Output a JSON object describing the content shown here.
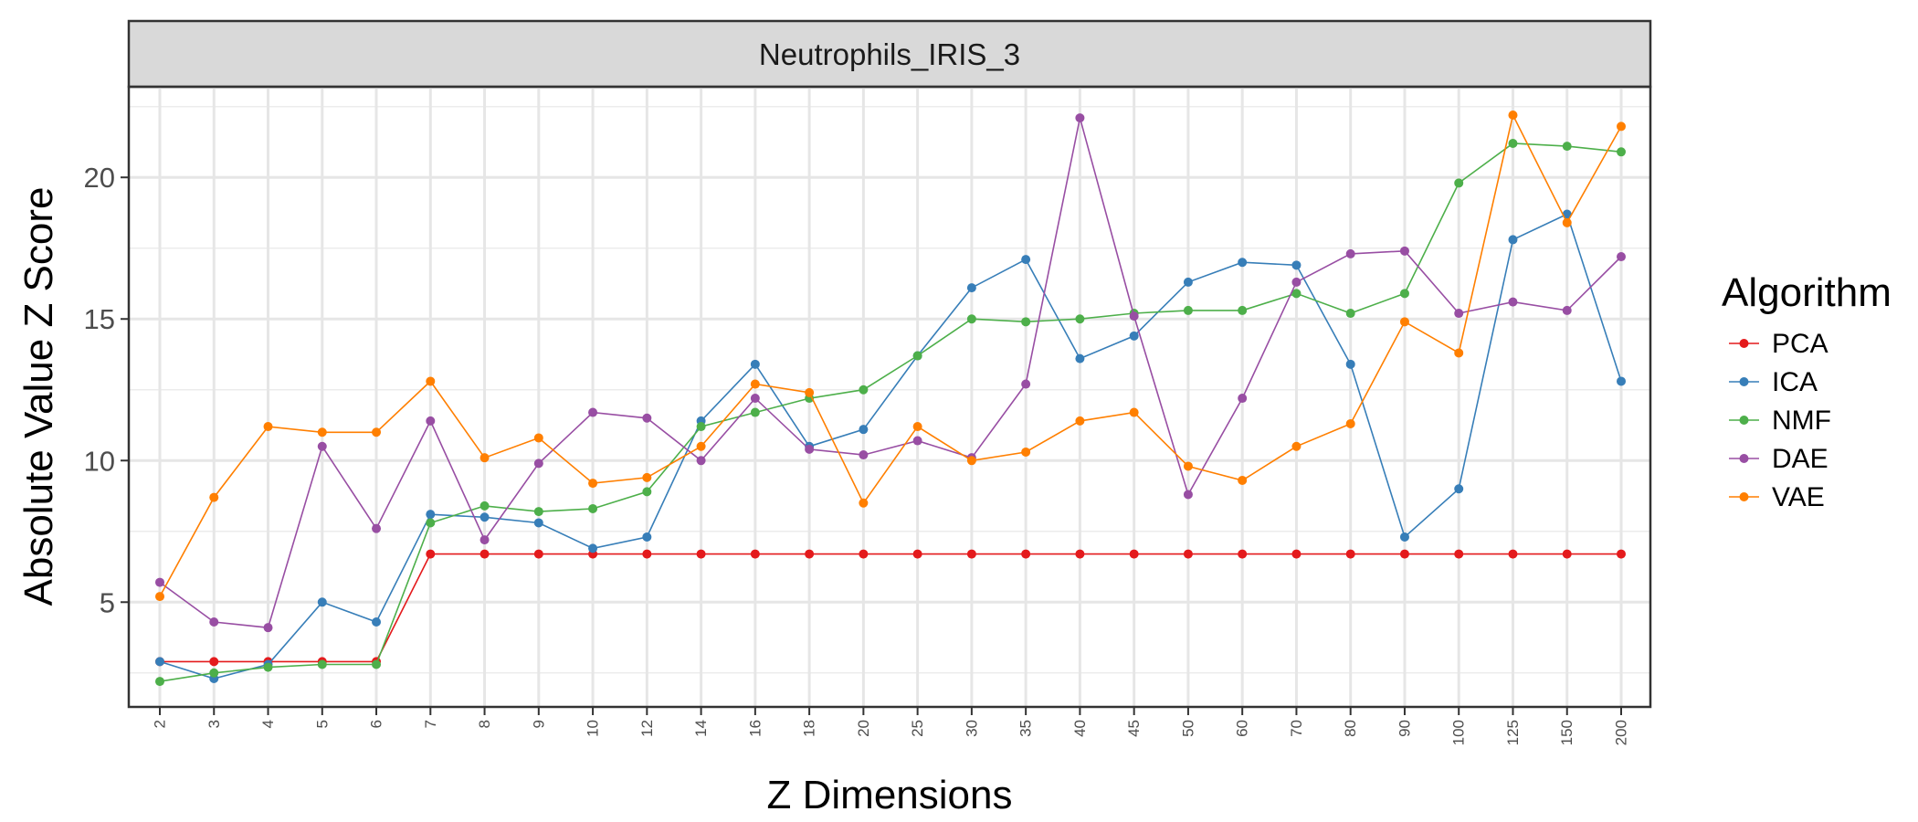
{
  "chart_data": {
    "type": "line",
    "title": "",
    "facet_label": "Neutrophils_IRIS_3",
    "xlabel": "Z Dimensions",
    "ylabel": "Absolute Value Z Score",
    "categories": [
      "2",
      "3",
      "4",
      "5",
      "6",
      "7",
      "8",
      "9",
      "10",
      "12",
      "14",
      "16",
      "18",
      "20",
      "25",
      "30",
      "35",
      "40",
      "45",
      "50",
      "60",
      "70",
      "80",
      "90",
      "100",
      "125",
      "150",
      "200"
    ],
    "ylim": [
      1.3,
      23.2
    ],
    "yticks": [
      5,
      10,
      15,
      20
    ],
    "grid": true,
    "legend": {
      "title": "Algorithm",
      "position": "right"
    },
    "series": [
      {
        "name": "PCA",
        "color": "#E41A1C",
        "values": [
          2.9,
          2.9,
          2.9,
          2.9,
          2.9,
          6.7,
          6.7,
          6.7,
          6.7,
          6.7,
          6.7,
          6.7,
          6.7,
          6.7,
          6.7,
          6.7,
          6.7,
          6.7,
          6.7,
          6.7,
          6.7,
          6.7,
          6.7,
          6.7,
          6.7,
          6.7,
          6.7,
          6.7
        ]
      },
      {
        "name": "ICA",
        "color": "#377EB8",
        "values": [
          2.9,
          2.3,
          2.8,
          5.0,
          4.3,
          8.1,
          8.0,
          7.8,
          6.9,
          7.3,
          11.4,
          13.4,
          10.5,
          11.1,
          13.7,
          16.1,
          17.1,
          13.6,
          14.4,
          16.3,
          17.0,
          16.9,
          13.4,
          7.3,
          9.0,
          17.8,
          18.7,
          12.8
        ]
      },
      {
        "name": "NMF",
        "color": "#4DAF4A",
        "values": [
          2.2,
          2.5,
          2.7,
          2.8,
          2.8,
          7.8,
          8.4,
          8.2,
          8.3,
          8.9,
          11.2,
          11.7,
          12.2,
          12.5,
          13.7,
          15.0,
          14.9,
          15.0,
          15.2,
          15.3,
          15.3,
          15.9,
          15.2,
          15.9,
          19.8,
          21.2,
          21.1,
          20.9
        ]
      },
      {
        "name": "DAE",
        "color": "#984EA3",
        "values": [
          5.7,
          4.3,
          4.1,
          10.5,
          7.6,
          11.4,
          7.2,
          9.9,
          11.7,
          11.5,
          10.0,
          12.2,
          10.4,
          10.2,
          10.7,
          10.1,
          12.7,
          22.1,
          15.1,
          8.8,
          12.2,
          16.3,
          17.3,
          17.4,
          15.2,
          15.6,
          15.3,
          17.2
        ]
      },
      {
        "name": "VAE",
        "color": "#FF7F00",
        "values": [
          5.2,
          8.7,
          11.2,
          11.0,
          11.0,
          12.8,
          10.1,
          10.8,
          9.2,
          9.4,
          10.5,
          12.7,
          12.4,
          8.5,
          11.2,
          10.0,
          10.3,
          11.4,
          11.7,
          9.8,
          9.3,
          10.5,
          11.3,
          14.9,
          13.8,
          22.2,
          18.4,
          21.8
        ]
      }
    ]
  }
}
